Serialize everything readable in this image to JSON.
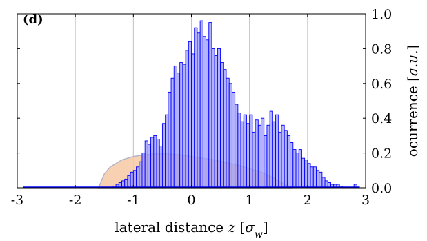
{
  "chart_data": {
    "type": "bar",
    "panel_label": "(d)",
    "xlabel": "lateral distance z [σ_w]",
    "ylabel": "ocurrence [a.u.]",
    "xlim": [
      -3,
      3
    ],
    "ylim": [
      0,
      1
    ],
    "xticks": [
      "-3",
      "-2",
      "-1",
      "0",
      "1",
      "2",
      "3"
    ],
    "yticks": [
      "0.0",
      "0.2",
      "0.4",
      "0.6",
      "0.8",
      "1.0"
    ],
    "y_axis_position": "right",
    "grid": "vertical",
    "bin_width": 0.05,
    "bins_start": -1.35,
    "values": [
      0.01,
      0.02,
      0.03,
      0.04,
      0.05,
      0.07,
      0.09,
      0.1,
      0.12,
      0.15,
      0.2,
      0.27,
      0.25,
      0.29,
      0.3,
      0.28,
      0.24,
      0.37,
      0.42,
      0.55,
      0.63,
      0.7,
      0.66,
      0.72,
      0.71,
      0.79,
      0.84,
      0.77,
      0.92,
      0.89,
      0.96,
      0.87,
      0.85,
      0.95,
      0.8,
      0.76,
      0.8,
      0.72,
      0.68,
      0.63,
      0.6,
      0.55,
      0.48,
      0.43,
      0.38,
      0.42,
      0.37,
      0.42,
      0.32,
      0.39,
      0.36,
      0.4,
      0.3,
      0.36,
      0.44,
      0.38,
      0.42,
      0.32,
      0.36,
      0.33,
      0.3,
      0.26,
      0.22,
      0.2,
      0.22,
      0.17,
      0.16,
      0.14,
      0.12,
      0.12,
      0.1,
      0.09,
      0.06,
      0.04,
      0.03,
      0.02,
      0.02,
      0.02,
      0.01,
      0,
      0,
      0,
      0,
      0.02
    ],
    "fit_curve": [
      [
        -1.6,
        0
      ],
      [
        -1.5,
        0.08
      ],
      [
        -1.4,
        0.12
      ],
      [
        -1.2,
        0.16
      ],
      [
        -1.0,
        0.18
      ],
      [
        -0.8,
        0.19
      ],
      [
        -0.6,
        0.195
      ],
      [
        -0.4,
        0.195
      ],
      [
        -0.2,
        0.19
      ],
      [
        0,
        0.18
      ],
      [
        0.2,
        0.17
      ],
      [
        0.4,
        0.16
      ],
      [
        0.6,
        0.145
      ],
      [
        0.8,
        0.13
      ],
      [
        1.0,
        0.11
      ],
      [
        1.2,
        0.09
      ],
      [
        1.4,
        0.06
      ],
      [
        1.6,
        0.02
      ],
      [
        1.75,
        0
      ]
    ],
    "colors": {
      "bar_fill": "#9a9aff",
      "bar_stroke": "#0000ff",
      "fit_fill": "#f7c9a4",
      "fit_stroke": "#b4b6c8",
      "baseline": "#0000ff",
      "grid": "#c0c0c0"
    }
  }
}
